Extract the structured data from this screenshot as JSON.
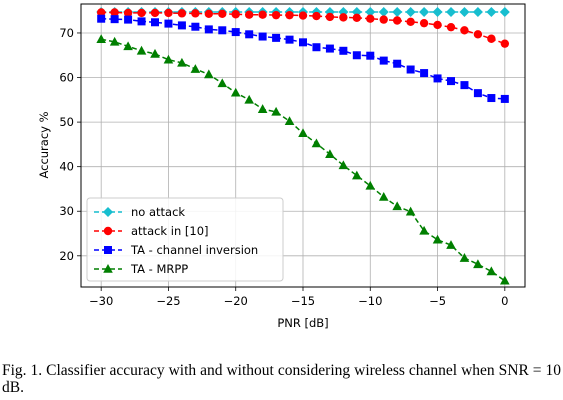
{
  "chart_data": {
    "type": "line",
    "xlabel": "PNR [dB]",
    "ylabel": "Accuracy %",
    "xlim": [
      -31.5,
      1.5
    ],
    "ylim": [
      13,
      76.5
    ],
    "xticks": [
      -30,
      -25,
      -20,
      -15,
      -10,
      -5,
      0
    ],
    "xtick_labels": [
      "−30",
      "−25",
      "−20",
      "−15",
      "−10",
      "−5",
      "0"
    ],
    "yticks": [
      20,
      30,
      40,
      50,
      60,
      70
    ],
    "ytick_labels": [
      "20",
      "30",
      "40",
      "50",
      "60",
      "70"
    ],
    "grid": true,
    "legend_position": "lower-left",
    "x": [
      -30,
      -29,
      -28,
      -27,
      -26,
      -25,
      -24,
      -23,
      -22,
      -21,
      -20,
      -19,
      -18,
      -17,
      -16,
      -15,
      -14,
      -13,
      -12,
      -11,
      -10,
      -9,
      -8,
      -7,
      -6,
      -5,
      -4,
      -3,
      -2,
      -1,
      0
    ],
    "series": [
      {
        "name": "no attack",
        "color": "#17becf",
        "marker": "diamond",
        "values": [
          74.7,
          74.7,
          74.7,
          74.7,
          74.7,
          74.7,
          74.7,
          74.7,
          74.7,
          74.7,
          74.7,
          74.7,
          74.7,
          74.7,
          74.7,
          74.7,
          74.7,
          74.7,
          74.7,
          74.7,
          74.7,
          74.7,
          74.7,
          74.7,
          74.7,
          74.7,
          74.7,
          74.7,
          74.7,
          74.7,
          74.7
        ]
      },
      {
        "name": "attack in [10]",
        "color": "#ff0000",
        "marker": "circle",
        "values": [
          74.6,
          74.6,
          74.5,
          74.5,
          74.5,
          74.5,
          74.4,
          74.4,
          74.3,
          74.3,
          74.2,
          74.1,
          74.1,
          74.0,
          74.0,
          73.9,
          73.8,
          73.6,
          73.5,
          73.4,
          73.2,
          73.0,
          72.8,
          72.5,
          72.2,
          71.8,
          71.3,
          70.6,
          69.7,
          68.7,
          67.6
        ]
      },
      {
        "name": "TA - channel inversion",
        "color": "#0000ff",
        "marker": "square",
        "values": [
          73.2,
          73.1,
          73.0,
          72.6,
          72.4,
          72.1,
          71.7,
          71.4,
          70.8,
          70.6,
          70.2,
          69.7,
          69.2,
          68.9,
          68.5,
          67.9,
          66.8,
          66.5,
          66.0,
          65.0,
          64.9,
          63.8,
          63.1,
          61.8,
          61.0,
          59.8,
          59.2,
          58.3,
          56.5,
          55.4,
          55.2
        ]
      },
      {
        "name": "TA - MRPP",
        "color": "#007f00",
        "marker": "triangle",
        "values": [
          68.6,
          68.0,
          67.0,
          66.0,
          65.3,
          64.0,
          63.3,
          61.9,
          60.7,
          58.7,
          56.6,
          55.0,
          52.9,
          52.3,
          50.2,
          47.5,
          45.2,
          42.8,
          40.3,
          38.0,
          35.7,
          33.2,
          31.1,
          29.9,
          25.6,
          23.6,
          22.4,
          19.5,
          18.1,
          16.5,
          14.4
        ]
      }
    ]
  },
  "caption": "Fig. 1.  Classifier accuracy with and without considering wireless channel when SNR = 10 dB."
}
